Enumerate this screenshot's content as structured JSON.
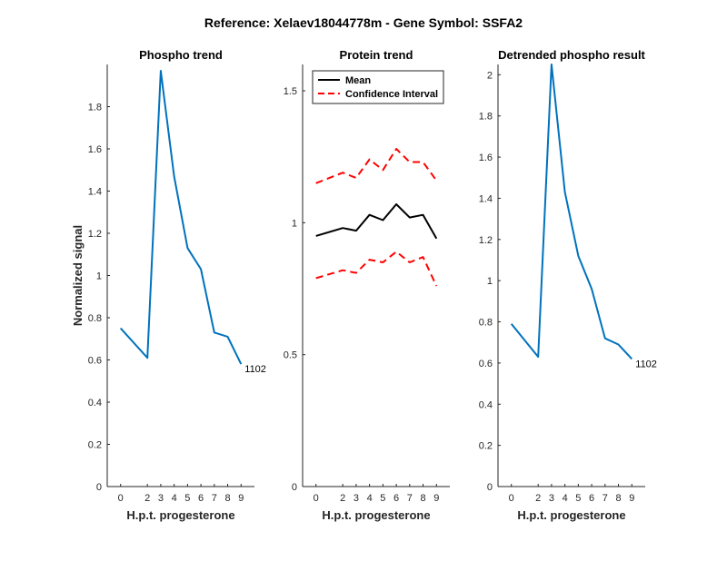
{
  "figure": {
    "title": "Reference:  Xelaev18044778m - Gene Symbol:  SSFA2"
  },
  "chart_data": [
    {
      "type": "line",
      "title": "Phospho trend",
      "xlabel": "H.p.t. progesterone",
      "ylabel": "Normalized signal",
      "xlim": [
        -1,
        10
      ],
      "ylim": [
        0,
        2
      ],
      "xticks": [
        0,
        2,
        3,
        4,
        5,
        6,
        7,
        8,
        9
      ],
      "yticks": [
        0,
        0.2,
        0.4,
        0.6,
        0.8,
        1,
        1.2,
        1.4,
        1.6,
        1.8
      ],
      "series": [
        {
          "color": "#0072BD",
          "style": "solid",
          "x": [
            0,
            2,
            3,
            4,
            5,
            6,
            7,
            8,
            9
          ],
          "y": [
            0.75,
            0.61,
            1.97,
            1.47,
            1.13,
            1.03,
            0.73,
            0.71,
            0.58
          ]
        }
      ],
      "annotation": {
        "text": "1102",
        "x": 9,
        "y": 0.58
      }
    },
    {
      "type": "line",
      "title": "Protein trend",
      "xlabel": "H.p.t. progesterone",
      "ylabel": "",
      "xlim": [
        -1,
        10
      ],
      "ylim": [
        0,
        1.6
      ],
      "xticks": [
        0,
        2,
        3,
        4,
        5,
        6,
        7,
        8,
        9
      ],
      "yticks": [
        0,
        0.5,
        1,
        1.5
      ],
      "legend": {
        "placement": "top-left"
      },
      "series": [
        {
          "name": "Mean",
          "color": "#000000",
          "style": "solid",
          "x": [
            0,
            2,
            3,
            4,
            5,
            6,
            7,
            8,
            9
          ],
          "y": [
            0.95,
            0.98,
            0.97,
            1.03,
            1.01,
            1.07,
            1.02,
            1.03,
            0.94
          ]
        },
        {
          "name": "Confidence Interval",
          "color": "#FF0000",
          "style": "dashed",
          "x": [
            0,
            2,
            3,
            4,
            5,
            6,
            7,
            8,
            9
          ],
          "y": [
            1.15,
            1.19,
            1.17,
            1.24,
            1.2,
            1.28,
            1.23,
            1.23,
            1.16
          ]
        },
        {
          "color": "#FF0000",
          "style": "dashed",
          "x": [
            0,
            2,
            3,
            4,
            5,
            6,
            7,
            8,
            9
          ],
          "y": [
            0.79,
            0.82,
            0.81,
            0.86,
            0.85,
            0.89,
            0.85,
            0.87,
            0.76
          ]
        }
      ]
    },
    {
      "type": "line",
      "title": "Detrended phospho result",
      "xlabel": "H.p.t. progesterone",
      "ylabel": "",
      "xlim": [
        -1,
        10
      ],
      "ylim": [
        0,
        2.05
      ],
      "xticks": [
        0,
        2,
        3,
        4,
        5,
        6,
        7,
        8,
        9
      ],
      "yticks": [
        0,
        0.2,
        0.4,
        0.6,
        0.8,
        1,
        1.2,
        1.4,
        1.6,
        1.8,
        2
      ],
      "series": [
        {
          "color": "#0072BD",
          "style": "solid",
          "x": [
            0,
            2,
            3,
            4,
            5,
            6,
            7,
            8,
            9
          ],
          "y": [
            0.79,
            0.63,
            2.05,
            1.43,
            1.12,
            0.96,
            0.72,
            0.69,
            0.62
          ]
        }
      ],
      "annotation": {
        "text": "1102",
        "x": 9,
        "y": 0.62
      }
    }
  ]
}
